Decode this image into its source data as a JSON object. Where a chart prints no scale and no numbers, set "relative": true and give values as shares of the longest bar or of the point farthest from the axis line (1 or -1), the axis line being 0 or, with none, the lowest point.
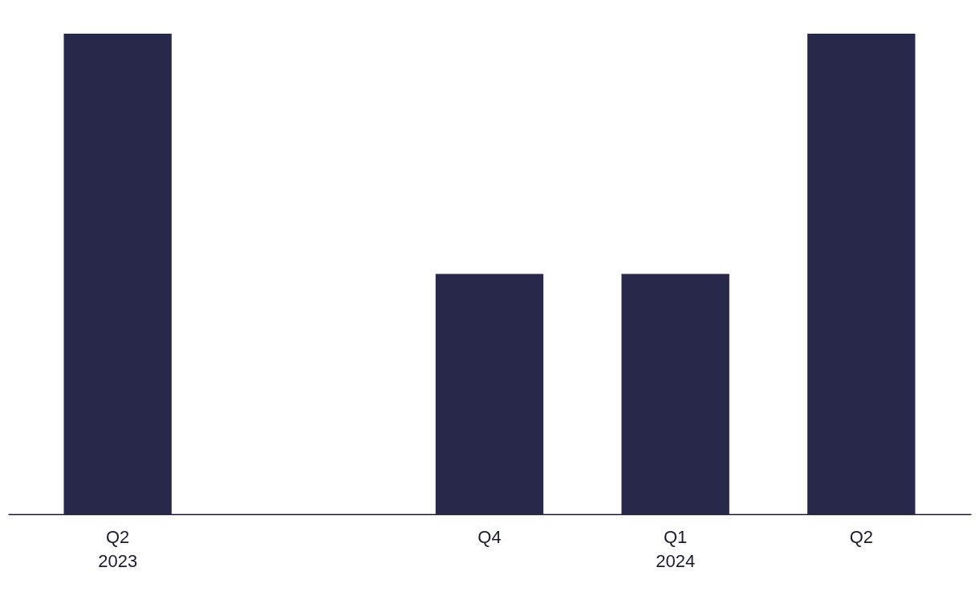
{
  "chart_data": {
    "type": "bar",
    "relative": true,
    "categories": [
      "Q2\n2023",
      null,
      "Q4",
      "Q1\n2024",
      "Q2"
    ],
    "values": [
      1,
      null,
      0.5,
      0.5,
      1
    ],
    "color": "#28284a"
  }
}
